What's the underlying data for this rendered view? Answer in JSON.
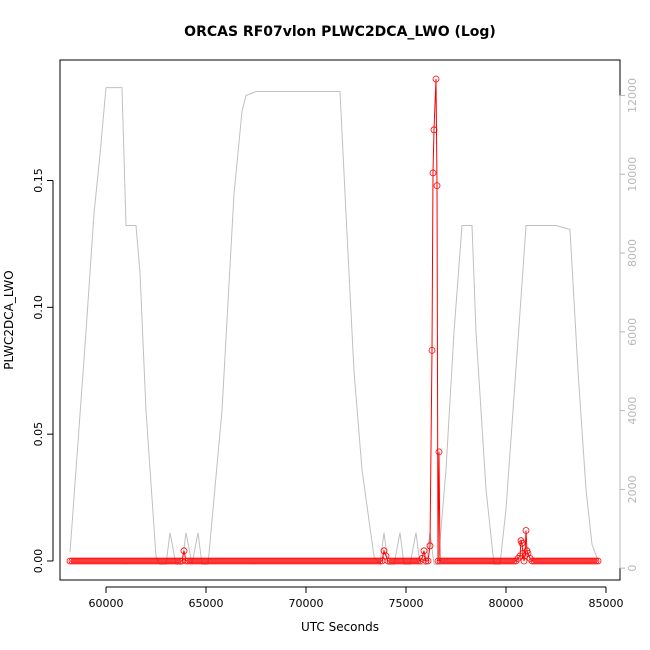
{
  "chart_data": {
    "type": "scatter",
    "title": "ORCAS RF07vlon PLWC2DCA_LWO (Log)",
    "xlabel": "UTC Seconds",
    "ylabel": "PLWC2DCA_LWO",
    "xlim": [
      57700,
      85700
    ],
    "ylim": [
      -0.0075,
      0.1975
    ],
    "y2lim": [
      -300,
      12900
    ],
    "x_ticks": [
      60000,
      65000,
      70000,
      75000,
      80000,
      85000
    ],
    "x_tick_labels": [
      "60000",
      "65000",
      "70000",
      "75000",
      "80000",
      "85000"
    ],
    "y_ticks": [
      0.0,
      0.05,
      0.1,
      0.15
    ],
    "y_tick_labels": [
      "0.00",
      "0.05",
      "0.10",
      "0.15"
    ],
    "y2_ticks": [
      0,
      2000,
      4000,
      6000,
      8000,
      10000,
      12000
    ],
    "y2_tick_labels": [
      "0",
      "2000",
      "4000",
      "6000",
      "8000",
      "10000",
      "12000"
    ],
    "grid": false,
    "colors": {
      "points": "#ff0000",
      "altitude": "#c0c0c0"
    },
    "series": [
      {
        "role": "primary",
        "axis": "left",
        "style": "points+line",
        "x_start": 58200,
        "x_end": 84600,
        "x_step": 100,
        "baseline_y": 0.0,
        "nonzero_points": [
          {
            "x": 63900,
            "y": 0.004
          },
          {
            "x": 73900,
            "y": 0.004
          },
          {
            "x": 74000,
            "y": 0.002
          },
          {
            "x": 75800,
            "y": 0.001
          },
          {
            "x": 75900,
            "y": 0.004
          },
          {
            "x": 76200,
            "y": 0.006
          },
          {
            "x": 76300,
            "y": 0.083
          },
          {
            "x": 76350,
            "y": 0.153
          },
          {
            "x": 76400,
            "y": 0.17
          },
          {
            "x": 76500,
            "y": 0.19
          },
          {
            "x": 76550,
            "y": 0.148
          },
          {
            "x": 76650,
            "y": 0.043
          },
          {
            "x": 80600,
            "y": 0.001
          },
          {
            "x": 80700,
            "y": 0.002
          },
          {
            "x": 80750,
            "y": 0.008
          },
          {
            "x": 80800,
            "y": 0.007
          },
          {
            "x": 80850,
            "y": 0.003
          },
          {
            "x": 80950,
            "y": 0.002
          },
          {
            "x": 81000,
            "y": 0.012
          },
          {
            "x": 81050,
            "y": 0.004
          },
          {
            "x": 81100,
            "y": 0.003
          },
          {
            "x": 81200,
            "y": 0.001
          }
        ]
      },
      {
        "role": "secondary",
        "axis": "right",
        "style": "line",
        "x": [
          58200,
          58500,
          59000,
          59400,
          59700,
          60000,
          60800,
          61000,
          61500,
          61700,
          62000,
          62500,
          62700,
          63000,
          63200,
          63500,
          63800,
          64000,
          64300,
          64600,
          64800,
          65100,
          65800,
          66400,
          66800,
          67000,
          67500,
          68500,
          69500,
          70500,
          71200,
          71700,
          72000,
          72400,
          72800,
          73400,
          73700,
          73900,
          74100,
          74400,
          74700,
          74900,
          75200,
          75500,
          75700,
          76000,
          76200,
          76400,
          76600,
          77000,
          77400,
          77800,
          78300,
          78500,
          79000,
          79400,
          79700,
          80000,
          80700,
          81000,
          82500,
          83200,
          83600,
          84000,
          84300,
          84600
        ],
        "values": [
          400,
          2500,
          6000,
          9000,
          10500,
          12200,
          12200,
          8700,
          8700,
          7500,
          4000,
          300,
          100,
          100,
          900,
          100,
          100,
          900,
          100,
          900,
          100,
          100,
          4000,
          9500,
          11600,
          12000,
          12100,
          12100,
          12100,
          12100,
          12100,
          12100,
          9000,
          5000,
          2500,
          300,
          100,
          900,
          100,
          100,
          900,
          100,
          100,
          900,
          100,
          100,
          900,
          100,
          100,
          2500,
          6000,
          8700,
          8700,
          6000,
          2000,
          100,
          100,
          1500,
          6500,
          8700,
          8700,
          8600,
          5000,
          2000,
          600,
          200
        ]
      }
    ]
  }
}
